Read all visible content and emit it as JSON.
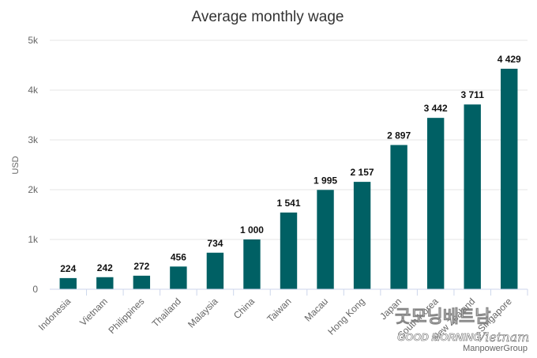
{
  "chart_data": {
    "type": "bar",
    "title": "Average monthly wage",
    "ylabel": "USD",
    "xlabel": "",
    "categories": [
      "Indonesia",
      "Vietnam",
      "Philippines",
      "Thailand",
      "Malaysia",
      "China",
      "Taiwan",
      "Macau",
      "Hong Kong",
      "Japan",
      "South Korea",
      "New Zealand",
      "Singapore"
    ],
    "values": [
      224,
      242,
      272,
      456,
      734,
      1000,
      1541,
      1995,
      2157,
      2897,
      3442,
      3711,
      4429
    ],
    "data_labels": [
      "224",
      "242",
      "272",
      "456",
      "734",
      "1 000",
      "1 541",
      "1 995",
      "2 157",
      "2 897",
      "3 442",
      "3 711",
      "4 429"
    ],
    "ylim": [
      0,
      5000
    ],
    "yticks": [
      0,
      1000,
      2000,
      3000,
      4000,
      5000
    ],
    "ytick_labels": [
      "0",
      "1k",
      "2k",
      "3k",
      "4k",
      "5k"
    ],
    "grid": true,
    "bar_color": "#006064",
    "credit": "ManpowerGroup"
  },
  "watermark": {
    "korean": "굿모닝베트남",
    "english": "GOOD MORNING",
    "script": "Vietnam"
  }
}
